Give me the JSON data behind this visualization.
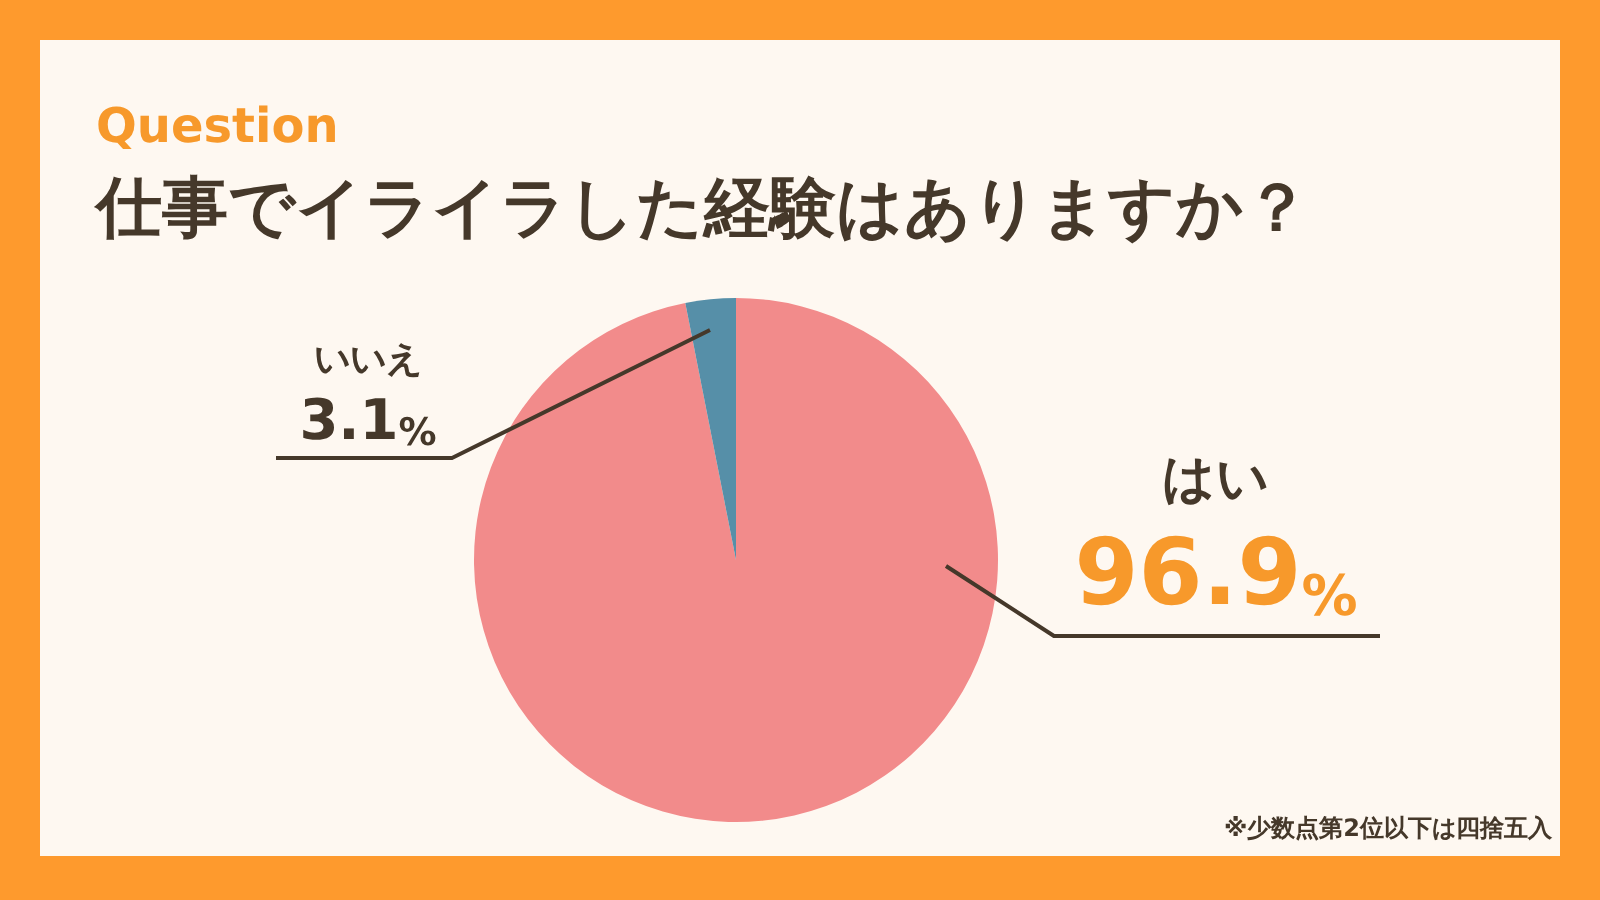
{
  "chart_data": {
    "type": "pie",
    "title": "Question",
    "subtitle": "仕事でイライラした経験はありますか？",
    "categories": [
      "はい",
      "いいえ"
    ],
    "values": [
      96.9,
      3.1
    ],
    "colors": [
      "#f28b8b",
      "#568fa8"
    ],
    "value_labels": [
      "96.9%",
      "3.1%"
    ],
    "annotations": [
      "※少数点第2位以下は四捨五入"
    ]
  }
}
